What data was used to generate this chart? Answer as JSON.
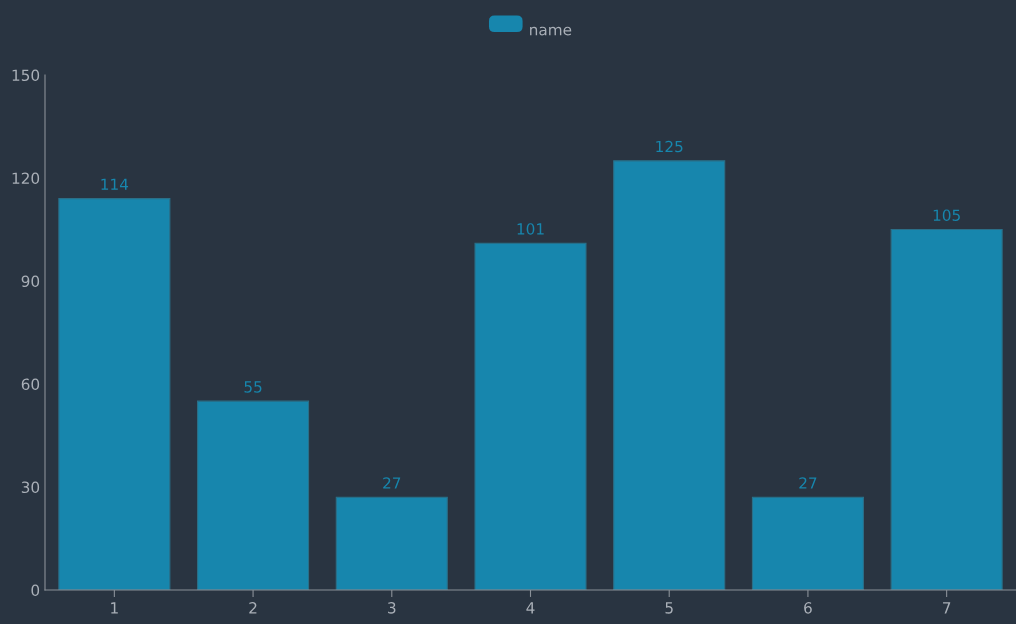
{
  "chart_data": {
    "type": "bar",
    "categories": [
      "1",
      "2",
      "3",
      "4",
      "5",
      "6",
      "7"
    ],
    "series": [
      {
        "name": "name",
        "color": "#1786ad",
        "values": [
          114,
          55,
          27,
          101,
          125,
          27,
          105
        ]
      }
    ],
    "ylim": [
      0,
      150
    ],
    "yticks": [
      0,
      30,
      60,
      90,
      120,
      150
    ],
    "grid": false,
    "legend": "top",
    "data_labels": true
  }
}
